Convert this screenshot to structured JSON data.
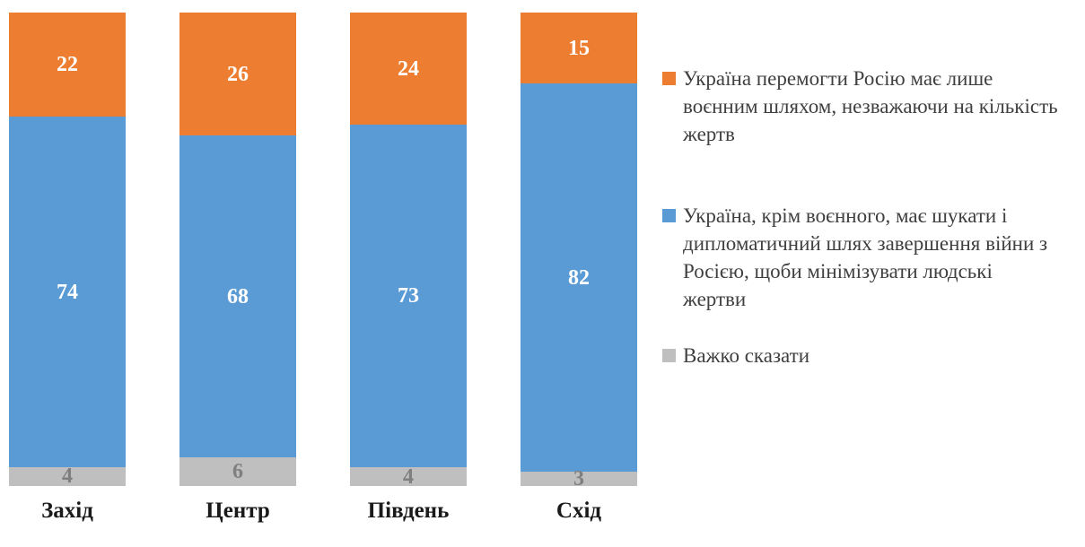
{
  "chart_data": {
    "type": "bar",
    "stacked": true,
    "orientation": "vertical",
    "title": "",
    "xlabel": "",
    "ylabel": "",
    "ylim": [
      0,
      100
    ],
    "legend_position": "right",
    "grid": false,
    "categories": [
      "Захід",
      "Центр",
      "Південь",
      "Схід"
    ],
    "series": [
      {
        "name": "Україна перемогти Росію має лише воєнним шляхом, незважаючи на кількість жертв",
        "color": "#ED7D31",
        "label_color": "#FFFFFF",
        "values": [
          22,
          26,
          24,
          15
        ]
      },
      {
        "name": "Україна, крім воєнного, має шукати і дипломатичний шлях завершення війни з Росією, щоби мінімізувати людські жертви",
        "color": "#5B9BD5",
        "label_color": "#FFFFFF",
        "values": [
          74,
          68,
          73,
          82
        ]
      },
      {
        "name": "Важко сказати",
        "color": "#BFBFBF",
        "label_color": "#7F7F7F",
        "values": [
          4,
          6,
          4,
          3
        ]
      }
    ]
  }
}
